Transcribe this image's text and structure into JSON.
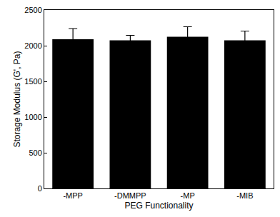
{
  "chart_data": {
    "type": "bar",
    "x_label": "PEG Functionality",
    "y_label": "Storage Modulus (G', Pa)",
    "categories": [
      "-MPP",
      "-DMMPP",
      "-MP",
      "-MIB"
    ],
    "values": [
      2090,
      2075,
      2125,
      2075
    ],
    "errors": [
      150,
      70,
      140,
      130
    ],
    "color": "#000000",
    "ylim": [
      0,
      2500
    ],
    "yticks": [
      0,
      500,
      1000,
      1500,
      2000,
      2500
    ],
    "grid": false
  }
}
